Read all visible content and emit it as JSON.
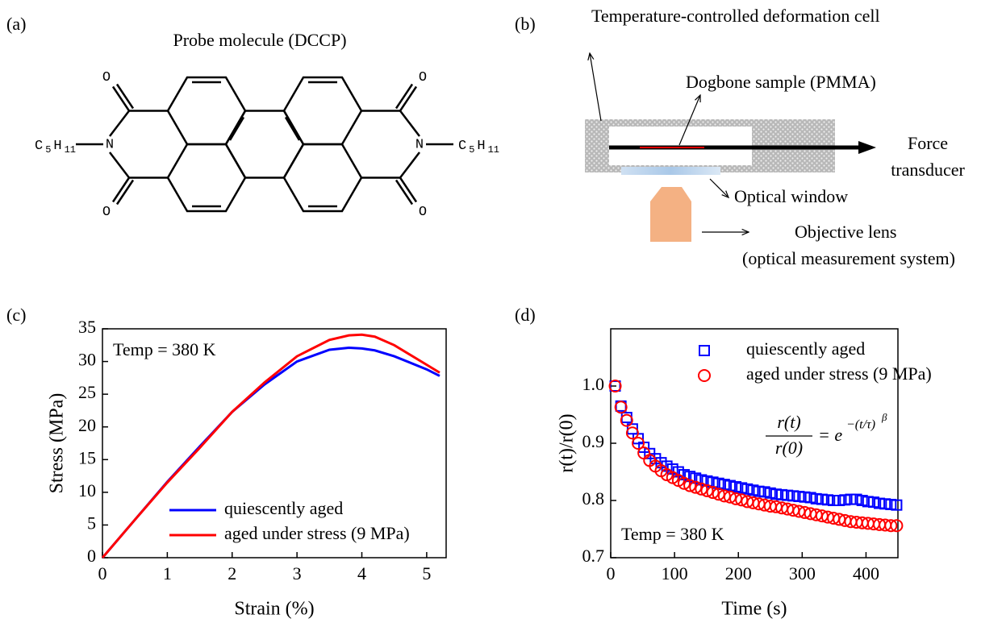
{
  "panel_labels": [
    "(a)",
    "(b)",
    "(c)",
    "(d)"
  ],
  "molecule": {
    "title": "Probe molecule (DCCP)",
    "atoms": {
      "O": "O",
      "N": "N"
    },
    "substituent": {
      "C": "C",
      "C_sub": "5",
      "H": "H",
      "H_sub": "11"
    }
  },
  "setup": {
    "cell": "Temperature-controlled deformation cell",
    "sample": "Dogbone sample (PMMA)",
    "transducer": [
      "Force",
      "transducer"
    ],
    "window": "Optical window",
    "lens": [
      "Objective lens",
      "(optical measurement system)"
    ]
  },
  "chart_data": [
    {
      "type": "line",
      "annotation": "Temp = 380 K",
      "x_label": "Strain (%)",
      "y_label": "Stress (MPa)",
      "xlim": [
        0,
        5.3
      ],
      "ylim": [
        0,
        35
      ],
      "xticks": [
        0,
        1,
        2,
        3,
        4,
        5
      ],
      "yticks": [
        0,
        5,
        10,
        15,
        20,
        25,
        30,
        35
      ],
      "legend": "lower right",
      "x": [
        0,
        0.5,
        1,
        1.5,
        2,
        2.5,
        3,
        3.5,
        3.8,
        4,
        4.2,
        4.5,
        5,
        5.2
      ],
      "series": [
        {
          "name": "quiescently aged",
          "color": "#0000ff",
          "values": [
            0,
            5.8,
            11.6,
            17,
            22.3,
            26.5,
            30,
            31.8,
            32.1,
            32,
            31.7,
            30.8,
            28.8,
            27.8
          ]
        },
        {
          "name": "aged under stress (9 MPa)",
          "color": "#ff0000",
          "values": [
            0,
            5.8,
            11.5,
            16.8,
            22.3,
            26.8,
            30.8,
            33.3,
            34,
            34.1,
            33.8,
            32.5,
            29.5,
            28.3
          ]
        }
      ]
    },
    {
      "type": "scatter",
      "annotation": "Temp = 380 K",
      "x_label": "Time (s)",
      "y_label": "r(t)/r(0)",
      "xlim": [
        0,
        450
      ],
      "ylim": [
        0.7,
        1.1
      ],
      "xticks": [
        0,
        100,
        200,
        300,
        400
      ],
      "yticks": [
        0.7,
        0.8,
        0.9,
        {
          "value": 1,
          "label": "1.0"
        }
      ],
      "legend": "upper right",
      "formula": {
        "numerator": "r(t)",
        "denominator": "r(0)",
        "rhs": "= e",
        "exponent": "−(t/τ)",
        "power": "β"
      },
      "x": [
        7,
        16,
        25,
        34,
        43,
        52,
        61,
        70,
        79,
        88,
        97,
        106,
        115,
        124,
        133,
        142,
        151,
        160,
        169,
        178,
        187,
        196,
        205,
        214,
        223,
        232,
        241,
        250,
        259,
        268,
        277,
        286,
        295,
        304,
        313,
        322,
        331,
        340,
        349,
        358,
        367,
        376,
        385,
        394,
        403,
        412,
        421,
        430,
        439,
        448
      ],
      "series": [
        {
          "name": "quiescently aged",
          "color": "#0000ff",
          "marker": "square",
          "values": [
            1.0,
            0.965,
            0.945,
            0.925,
            0.908,
            0.893,
            0.882,
            0.873,
            0.866,
            0.86,
            0.855,
            0.85,
            0.845,
            0.842,
            0.839,
            0.836,
            0.834,
            0.832,
            0.83,
            0.828,
            0.826,
            0.824,
            0.822,
            0.82,
            0.818,
            0.816,
            0.815,
            0.813,
            0.811,
            0.81,
            0.809,
            0.808,
            0.807,
            0.806,
            0.805,
            0.803,
            0.802,
            0.801,
            0.8,
            0.8,
            0.801,
            0.802,
            0.802,
            0.8,
            0.798,
            0.797,
            0.795,
            0.794,
            0.793,
            0.792
          ]
        },
        {
          "name": "aged under stress (9 MPa)",
          "color": "#ff0000",
          "marker": "circle",
          "values": [
            1.0,
            0.963,
            0.94,
            0.918,
            0.9,
            0.883,
            0.87,
            0.86,
            0.852,
            0.845,
            0.84,
            0.835,
            0.83,
            0.826,
            0.823,
            0.82,
            0.817,
            0.814,
            0.811,
            0.808,
            0.806,
            0.803,
            0.801,
            0.798,
            0.796,
            0.794,
            0.792,
            0.79,
            0.789,
            0.787,
            0.785,
            0.783,
            0.781,
            0.779,
            0.777,
            0.775,
            0.773,
            0.771,
            0.769,
            0.767,
            0.765,
            0.763,
            0.762,
            0.761,
            0.76,
            0.759,
            0.758,
            0.757,
            0.756,
            0.756
          ]
        }
      ]
    }
  ]
}
